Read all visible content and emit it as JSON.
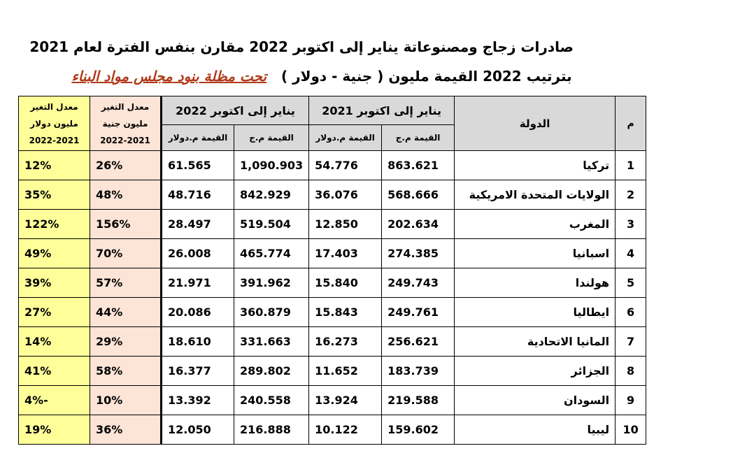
{
  "title": "صادرات زجاج ومصنوعاتة يناير إلى اكتوبر 2022 مقارن بنفس الفترة لعام 2021",
  "subtitle": {
    "text": "بترتيب 2022 القيمة مليون ( جنية - دولار )",
    "highlight": "تحت مظلة بنود مجلس مواد البناء"
  },
  "headers": {
    "num": "م",
    "country": "الدولة",
    "period_2021": "يناير إلى اكتوبر 2021",
    "period_2022": "يناير إلى اكتوبر 2022",
    "value_egp": "القيمة م.ج",
    "value_usd": "القيمة م.دولار",
    "rate_egp": [
      "معدل التغير",
      "مليون جنية",
      "2022-2021"
    ],
    "rate_usd": [
      "معدل التغير",
      "مليون دولار",
      "2022-2021"
    ]
  },
  "rows": [
    {
      "num": "1",
      "country": "تركيا",
      "egp_2021": "863.621",
      "usd_2021": "54.776",
      "egp_2022": "1,090.903",
      "usd_2022": "61.565",
      "rate_egp": "26%",
      "rate_usd": "12%"
    },
    {
      "num": "2",
      "country": "الولايات المتحدة الامريكية",
      "egp_2021": "568.666",
      "usd_2021": "36.076",
      "egp_2022": "842.929",
      "usd_2022": "48.716",
      "rate_egp": "48%",
      "rate_usd": "35%"
    },
    {
      "num": "3",
      "country": "المغرب",
      "egp_2021": "202.634",
      "usd_2021": "12.850",
      "egp_2022": "519.504",
      "usd_2022": "28.497",
      "rate_egp": "156%",
      "rate_usd": "122%"
    },
    {
      "num": "4",
      "country": "اسبانيا",
      "egp_2021": "274.385",
      "usd_2021": "17.403",
      "egp_2022": "465.774",
      "usd_2022": "26.008",
      "rate_egp": "70%",
      "rate_usd": "49%"
    },
    {
      "num": "5",
      "country": "هولندا",
      "egp_2021": "249.743",
      "usd_2021": "15.840",
      "egp_2022": "391.962",
      "usd_2022": "21.971",
      "rate_egp": "57%",
      "rate_usd": "39%"
    },
    {
      "num": "6",
      "country": "ايطاليا",
      "egp_2021": "249.761",
      "usd_2021": "15.843",
      "egp_2022": "360.879",
      "usd_2022": "20.086",
      "rate_egp": "44%",
      "rate_usd": "27%"
    },
    {
      "num": "7",
      "country": "المانيا الاتحادية",
      "egp_2021": "256.621",
      "usd_2021": "16.273",
      "egp_2022": "331.663",
      "usd_2022": "18.610",
      "rate_egp": "29%",
      "rate_usd": "14%"
    },
    {
      "num": "8",
      "country": "الجزائر",
      "egp_2021": "183.739",
      "usd_2021": "11.652",
      "egp_2022": "289.802",
      "usd_2022": "16.377",
      "rate_egp": "58%",
      "rate_usd": "41%"
    },
    {
      "num": "9",
      "country": "السودان",
      "egp_2021": "219.588",
      "usd_2021": "13.924",
      "egp_2022": "240.558",
      "usd_2022": "13.392",
      "rate_egp": "10%",
      "rate_usd": "-4%"
    },
    {
      "num": "10",
      "country": "ليبيا",
      "egp_2021": "159.602",
      "usd_2021": "10.122",
      "egp_2022": "216.888",
      "usd_2022": "12.050",
      "rate_egp": "36%",
      "rate_usd": "19%"
    }
  ]
}
